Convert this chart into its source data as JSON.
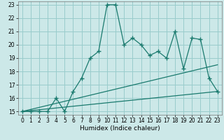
{
  "xlabel": "Humidex (Indice chaleur)",
  "background_color": "#cce8e8",
  "grid_color": "#99cccc",
  "line_color": "#1a7a6e",
  "xlim": [
    -0.5,
    23.5
  ],
  "ylim": [
    14.75,
    23.25
  ],
  "xticks": [
    0,
    1,
    2,
    3,
    4,
    5,
    6,
    7,
    8,
    9,
    10,
    11,
    12,
    13,
    14,
    15,
    16,
    17,
    18,
    19,
    20,
    21,
    22,
    23
  ],
  "yticks": [
    15,
    16,
    17,
    18,
    19,
    20,
    21,
    22,
    23
  ],
  "main_x": [
    0,
    1,
    2,
    3,
    4,
    5,
    6,
    7,
    8,
    9,
    10,
    11,
    12,
    13,
    14,
    15,
    16,
    17,
    18,
    19,
    20,
    21,
    22,
    23
  ],
  "main_y": [
    15.0,
    15.0,
    15.0,
    15.0,
    16.0,
    15.0,
    16.5,
    17.5,
    19.0,
    19.5,
    23.0,
    23.0,
    20.0,
    20.5,
    20.0,
    19.2,
    19.5,
    19.0,
    21.0,
    18.2,
    20.5,
    20.4,
    17.5,
    16.5
  ],
  "line1_x": [
    0,
    23
  ],
  "line1_y": [
    15.0,
    16.5
  ],
  "line2_x": [
    0,
    23
  ],
  "line2_y": [
    15.0,
    18.5
  ]
}
